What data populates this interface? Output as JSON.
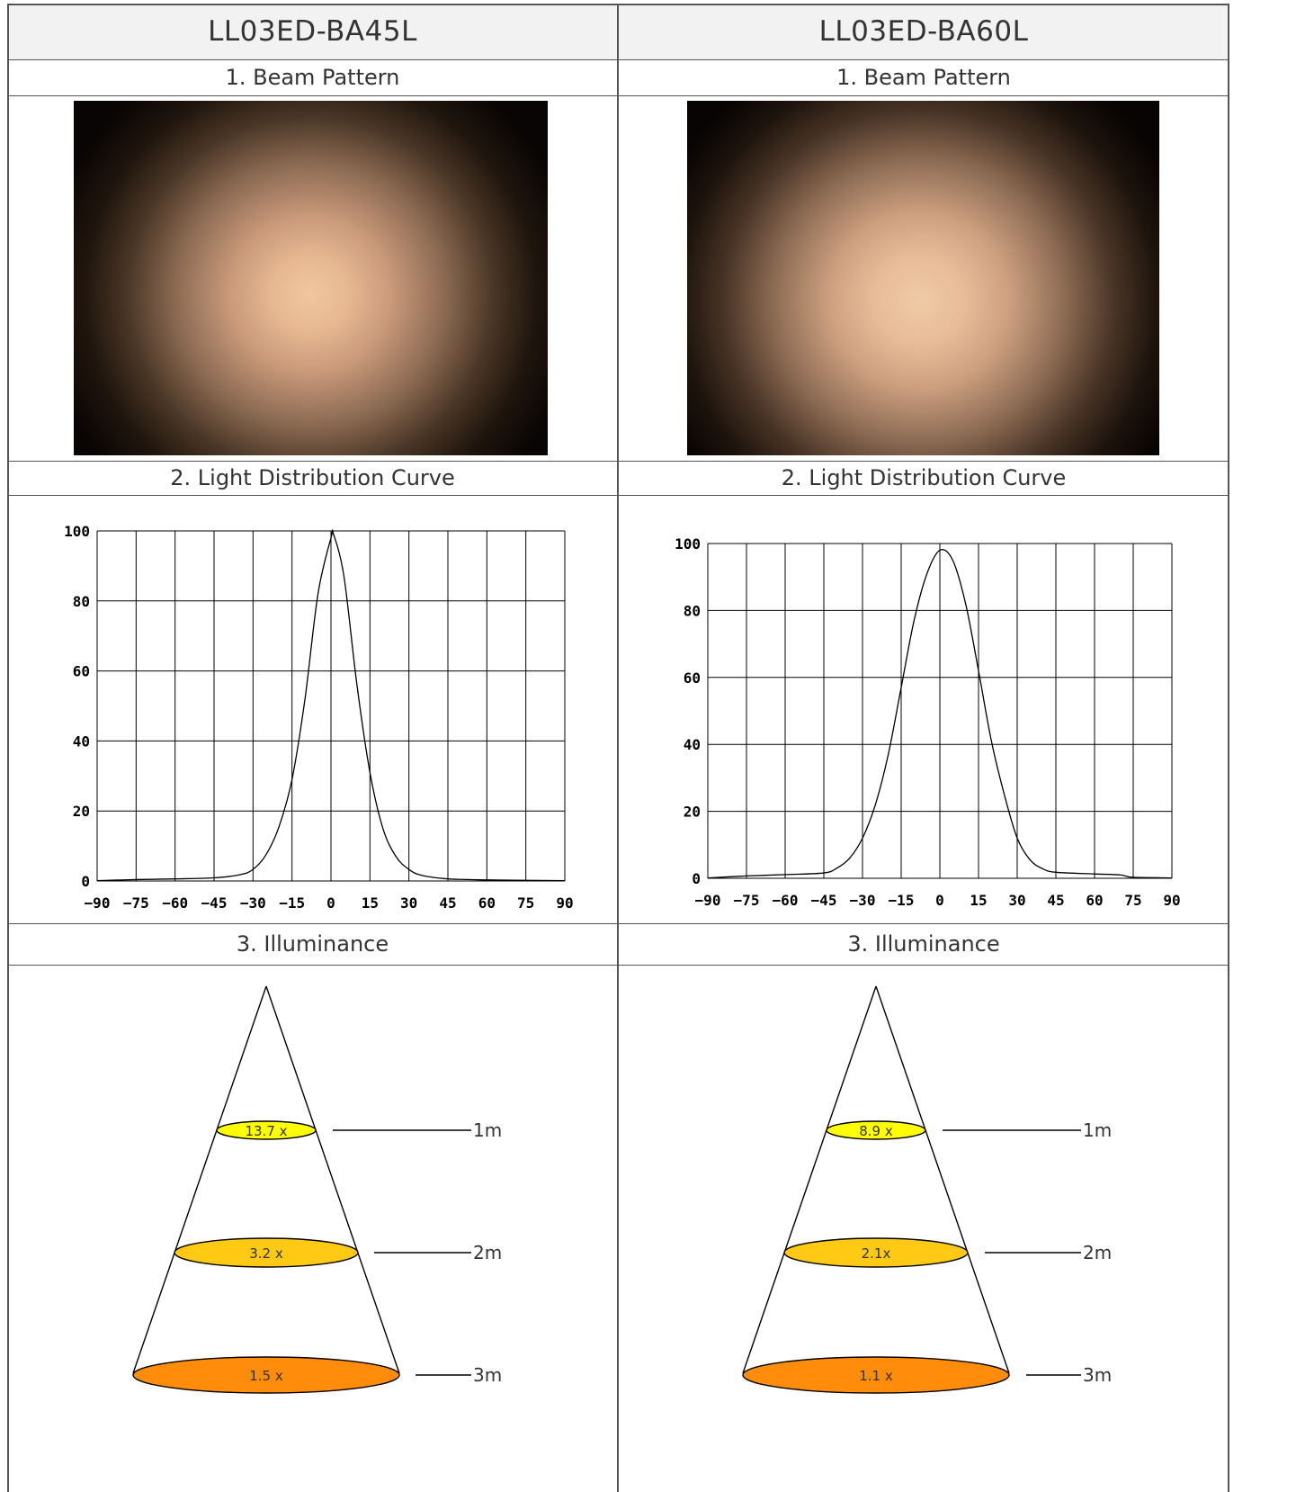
{
  "columns": [
    {
      "model": "LL03ED-BA45L",
      "beam_label": "1. Beam Pattern",
      "curve_label": "2. Light Distribution Curve",
      "illum_label": "3. Illuminance",
      "chart_data": {
        "type": "line",
        "x_ticks": [
          "-90",
          "-75",
          "-60",
          "-45",
          "-30",
          "-15",
          "0",
          "15",
          "30",
          "45",
          "60",
          "75",
          "90"
        ],
        "y_ticks": [
          "0",
          "20",
          "40",
          "60",
          "80",
          "100"
        ],
        "xlim": [
          -90,
          90
        ],
        "ylim": [
          0,
          100
        ],
        "grid": true,
        "x": [
          -90,
          -75,
          -60,
          -45,
          -35,
          -30,
          -25,
          -20,
          -15,
          -10,
          -5,
          0,
          1,
          5,
          10,
          15,
          20,
          25,
          30,
          35,
          45,
          60,
          75,
          90
        ],
        "y": [
          0.1,
          0.4,
          0.6,
          0.9,
          1.8,
          3.3,
          7.5,
          15.5,
          29,
          52,
          82,
          98,
          99,
          87,
          56,
          31,
          15,
          7,
          3.3,
          1.6,
          0.6,
          0.3,
          0.2,
          0.1
        ]
      },
      "illuminance": {
        "levels": [
          {
            "value": "13.7 x",
            "distance": "1m",
            "color": "#ffff00"
          },
          {
            "value": "3.2 x",
            "distance": "2m",
            "color": "#ffc914"
          },
          {
            "value": "1.5 x",
            "distance": "3m",
            "color": "#ff8c0a"
          }
        ]
      }
    },
    {
      "model": "LL03ED-BA60L",
      "beam_label": "1. Beam Pattern",
      "curve_label": "2. Light Distribution Curve",
      "illum_label": "3. Illuminance",
      "chart_data": {
        "type": "line",
        "x_ticks": [
          "-90",
          "-75",
          "-60",
          "-45",
          "-30",
          "-15",
          "0",
          "15",
          "30",
          "45",
          "60",
          "75",
          "90"
        ],
        "y_ticks": [
          "0",
          "20",
          "40",
          "60",
          "80",
          "100"
        ],
        "xlim": [
          -90,
          90
        ],
        "ylim": [
          0,
          100
        ],
        "grid": true,
        "x": [
          -90,
          -75,
          -60,
          -45,
          -40,
          -35,
          -30,
          -25,
          -20,
          -15,
          -10,
          -5,
          0,
          5,
          10,
          15,
          20,
          25,
          30,
          35,
          40,
          45,
          60,
          70,
          75,
          90
        ],
        "y": [
          0.1,
          0.7,
          1.1,
          1.6,
          3,
          6,
          12,
          22,
          37,
          57,
          77,
          91,
          98,
          95,
          82,
          62,
          41,
          25,
          12,
          5.5,
          2.8,
          1.8,
          1.3,
          1.0,
          0.3,
          0.1
        ]
      },
      "illuminance": {
        "levels": [
          {
            "value": "8.9 x",
            "distance": "1m",
            "color": "#ffff00"
          },
          {
            "value": "2.1x",
            "distance": "2m",
            "color": "#ffc914"
          },
          {
            "value": "1.1 x",
            "distance": "3m",
            "color": "#ff8c0a"
          }
        ]
      }
    }
  ]
}
